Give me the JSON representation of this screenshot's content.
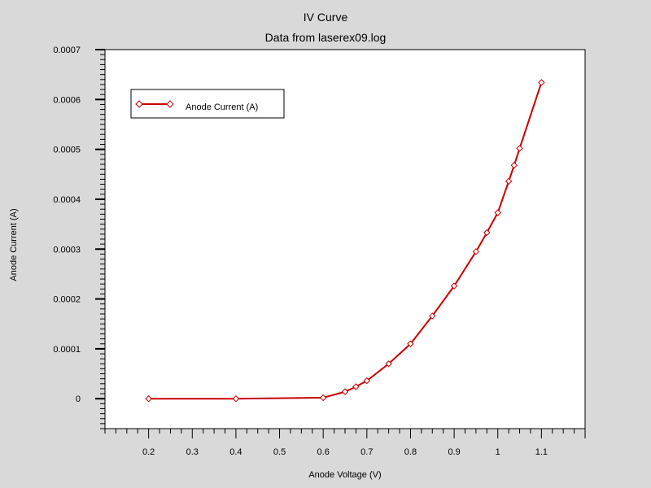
{
  "chart_data": {
    "type": "line",
    "title": "IV Curve",
    "subtitle": "Data from laserex09.log",
    "xlabel": "Anode Voltage (V)",
    "ylabel": "Anode Current (A)",
    "xlim": [
      0.1,
      1.2
    ],
    "ylim": [
      -6e-05,
      0.0007
    ],
    "x_ticks": [
      0.2,
      0.3,
      0.4,
      0.5,
      0.6,
      0.7,
      0.8,
      0.9,
      1,
      1.1
    ],
    "x_tick_labels": [
      "0.2",
      "0.3",
      "0.4",
      "0.5",
      "0.6",
      "0.7",
      "0.8",
      "0.9",
      "1",
      "1.1"
    ],
    "y_ticks": [
      0,
      0.0001,
      0.0002,
      0.0003,
      0.0004,
      0.0005,
      0.0006,
      0.0007
    ],
    "y_tick_labels": [
      "0",
      "0.0001",
      "0.0002",
      "0.0003",
      "0.0004",
      "0.0005",
      "0.0006",
      "0.0007"
    ],
    "legend": "top-left",
    "grid": false,
    "series": [
      {
        "name": "Anode Current (A)",
        "color": "#cc0000",
        "marker": "diamond",
        "x": [
          0.2,
          0.4,
          0.6,
          0.65,
          0.675,
          0.7,
          0.75,
          0.8,
          0.85,
          0.9,
          0.95,
          0.975,
          1.0,
          1.025,
          1.0375,
          1.05,
          1.1
        ],
        "y": [
          0,
          0,
          2e-06,
          1.4e-05,
          2.4e-05,
          3.6e-05,
          7e-05,
          0.00011,
          0.000166,
          0.000226,
          0.000295,
          0.000333,
          0.000373,
          0.000436,
          0.000468,
          0.000502,
          0.000634
        ]
      }
    ]
  }
}
